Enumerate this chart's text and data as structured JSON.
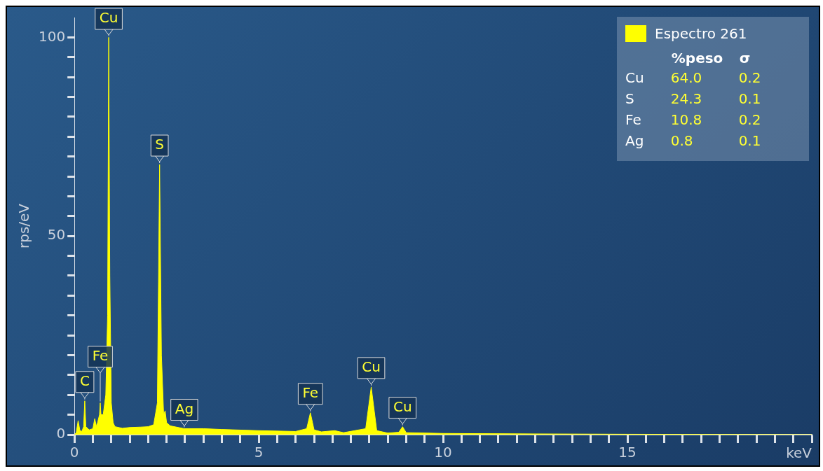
{
  "chart_data": {
    "type": "area",
    "xlabel": "keV",
    "ylabel": "rps/eV",
    "legend": "top right",
    "grid": false,
    "xlim": [
      0,
      20
    ],
    "ylim": [
      0,
      105
    ],
    "xticks": [
      0,
      {
        "value": 0.5,
        "label": null
      },
      {
        "value": 1,
        "label": null
      },
      {
        "value": 1.5,
        "label": null
      },
      {
        "value": 2,
        "label": null
      },
      {
        "value": 2.5,
        "label": null
      },
      {
        "value": 3,
        "label": null
      },
      {
        "value": 3.5,
        "label": null
      },
      {
        "value": 4,
        "label": null
      },
      {
        "value": 4.5,
        "label": null
      },
      5,
      {
        "value": 5.5,
        "label": null
      },
      {
        "value": 6,
        "label": null
      },
      {
        "value": 6.5,
        "label": null
      },
      {
        "value": 7,
        "label": null
      },
      {
        "value": 7.5,
        "label": null
      },
      {
        "value": 8,
        "label": null
      },
      {
        "value": 8.5,
        "label": null
      },
      {
        "value": 9,
        "label": null
      },
      {
        "value": 9.5,
        "label": null
      },
      10,
      {
        "value": 10.5,
        "label": null
      },
      {
        "value": 11,
        "label": null
      },
      {
        "value": 11.5,
        "label": null
      },
      {
        "value": 12,
        "label": null
      },
      {
        "value": 12.5,
        "label": null
      },
      {
        "value": 13,
        "label": null
      },
      {
        "value": 13.5,
        "label": null
      },
      {
        "value": 14,
        "label": null
      },
      {
        "value": 14.5,
        "label": null
      },
      15,
      {
        "value": 15.5,
        "label": null
      },
      {
        "value": 16,
        "label": null
      },
      {
        "value": 16.5,
        "label": null
      },
      {
        "value": 17,
        "label": null
      },
      {
        "value": 17.5,
        "label": null
      },
      {
        "value": 18,
        "label": null
      },
      {
        "value": 18.5,
        "label": null
      },
      {
        "value": 19,
        "label": null
      },
      {
        "value": 19.5,
        "label": null
      },
      {
        "value": 20,
        "label": null
      }
    ],
    "yticks": [
      0,
      {
        "value": 5,
        "label": null
      },
      {
        "value": 10,
        "label": null
      },
      {
        "value": 15,
        "label": null
      },
      {
        "value": 20,
        "label": null
      },
      {
        "value": 25,
        "label": null
      },
      {
        "value": 30,
        "label": null
      },
      {
        "value": 35,
        "label": null
      },
      {
        "value": 40,
        "label": null
      },
      {
        "value": 45,
        "label": null
      },
      50,
      {
        "value": 55,
        "label": null
      },
      {
        "value": 60,
        "label": null
      },
      {
        "value": 65,
        "label": null
      },
      {
        "value": 70,
        "label": null
      },
      {
        "value": 75,
        "label": null
      },
      {
        "value": 80,
        "label": null
      },
      {
        "value": 85,
        "label": null
      },
      {
        "value": 90,
        "label": null
      },
      {
        "value": 95,
        "label": null
      },
      100
    ],
    "series": [
      {
        "name": "Espectro 261",
        "color": "#ffff00",
        "x": [
          0,
          0.05,
          0.1,
          0.15,
          0.2,
          0.25,
          0.28,
          0.31,
          0.4,
          0.5,
          0.55,
          0.6,
          0.68,
          0.7,
          0.72,
          0.78,
          0.85,
          0.9,
          0.93,
          0.96,
          1.0,
          1.05,
          1.1,
          1.3,
          1.5,
          1.8,
          2.0,
          2.15,
          2.25,
          2.31,
          2.36,
          2.42,
          2.46,
          2.5,
          2.6,
          2.98,
          3.5,
          4,
          5,
          6,
          6.3,
          6.4,
          6.5,
          6.7,
          7.06,
          7.3,
          7.9,
          8.05,
          8.2,
          8.5,
          8.8,
          8.9,
          9.0,
          10,
          12,
          15,
          20
        ],
        "values": [
          0,
          0.5,
          3.5,
          1,
          0.8,
          2,
          8.5,
          2,
          1.2,
          1.5,
          4,
          2,
          5,
          8,
          5,
          5,
          10,
          30,
          100,
          40,
          8,
          3,
          2,
          1.6,
          1.8,
          1.9,
          2,
          2.5,
          8,
          68,
          20,
          5,
          6,
          3,
          2.2,
          1.5,
          1.5,
          1.3,
          1,
          0.8,
          1.5,
          5.5,
          1.2,
          0.7,
          1,
          0.5,
          1.5,
          12,
          1,
          0.4,
          0.6,
          2,
          0.5,
          0.3,
          0.2,
          0.1,
          0
        ]
      }
    ],
    "annotations": [
      {
        "text": "C",
        "x": 0.28,
        "y": 8.5
      },
      {
        "text": "Fe",
        "x": 0.7,
        "y": 8
      },
      {
        "text": "Cu",
        "x": 0.93,
        "y": 100
      },
      {
        "text": "S",
        "x": 2.31,
        "y": 68
      },
      {
        "text": "Ag",
        "x": 2.98,
        "y": 1.5
      },
      {
        "text": "Fe",
        "x": 6.4,
        "y": 5.5
      },
      {
        "text": "Cu",
        "x": 8.05,
        "y": 12
      },
      {
        "text": "Cu",
        "x": 8.9,
        "y": 2
      },
      "%peso",
      "σ",
      "Cu",
      "64.0",
      "0.2",
      "S",
      "24.3",
      "0.1",
      "Fe",
      "10.8",
      "0.2",
      "Ag",
      "0.8",
      "0.1"
    ]
  }
}
